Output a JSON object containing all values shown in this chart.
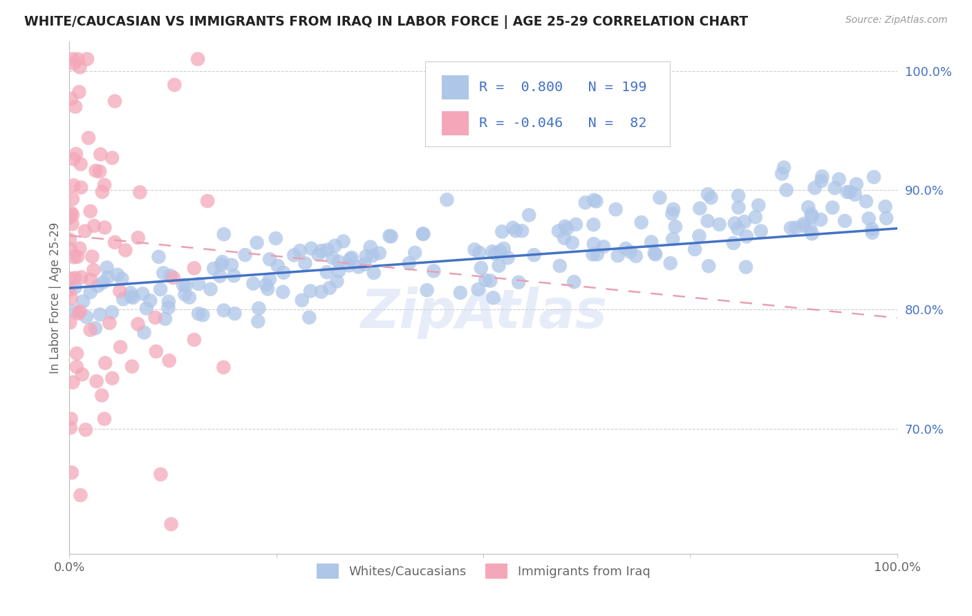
{
  "title": "WHITE/CAUCASIAN VS IMMIGRANTS FROM IRAQ IN LABOR FORCE | AGE 25-29 CORRELATION CHART",
  "source": "Source: ZipAtlas.com",
  "ylabel": "In Labor Force | Age 25-29",
  "xmin": 0.0,
  "xmax": 1.0,
  "ymin": 0.595,
  "ymax": 1.025,
  "yticks": [
    0.7,
    0.8,
    0.9,
    1.0
  ],
  "ytick_labels": [
    "70.0%",
    "80.0%",
    "90.0%",
    "100.0%"
  ],
  "legend_entries": [
    {
      "label": "Whites/Caucasians",
      "color": "#aec6e8"
    },
    {
      "label": "Immigrants from Iraq",
      "color": "#f4a7b9"
    }
  ],
  "R_blue": 0.8,
  "N_blue": 199,
  "R_pink": -0.046,
  "N_pink": 82,
  "blue_color": "#aec6e8",
  "pink_color": "#f4a7b9",
  "blue_line_color": "#4472c4",
  "pink_line_color": "#e8a0b0",
  "title_color": "#222222",
  "axis_color": "#666666",
  "grid_color": "#cccccc",
  "watermark": "ZipAtlas",
  "background_color": "#ffffff",
  "seed": 42,
  "blue_line_start_y": 0.818,
  "blue_line_end_y": 0.868,
  "pink_line_start_y": 0.862,
  "pink_line_end_y": 0.793
}
